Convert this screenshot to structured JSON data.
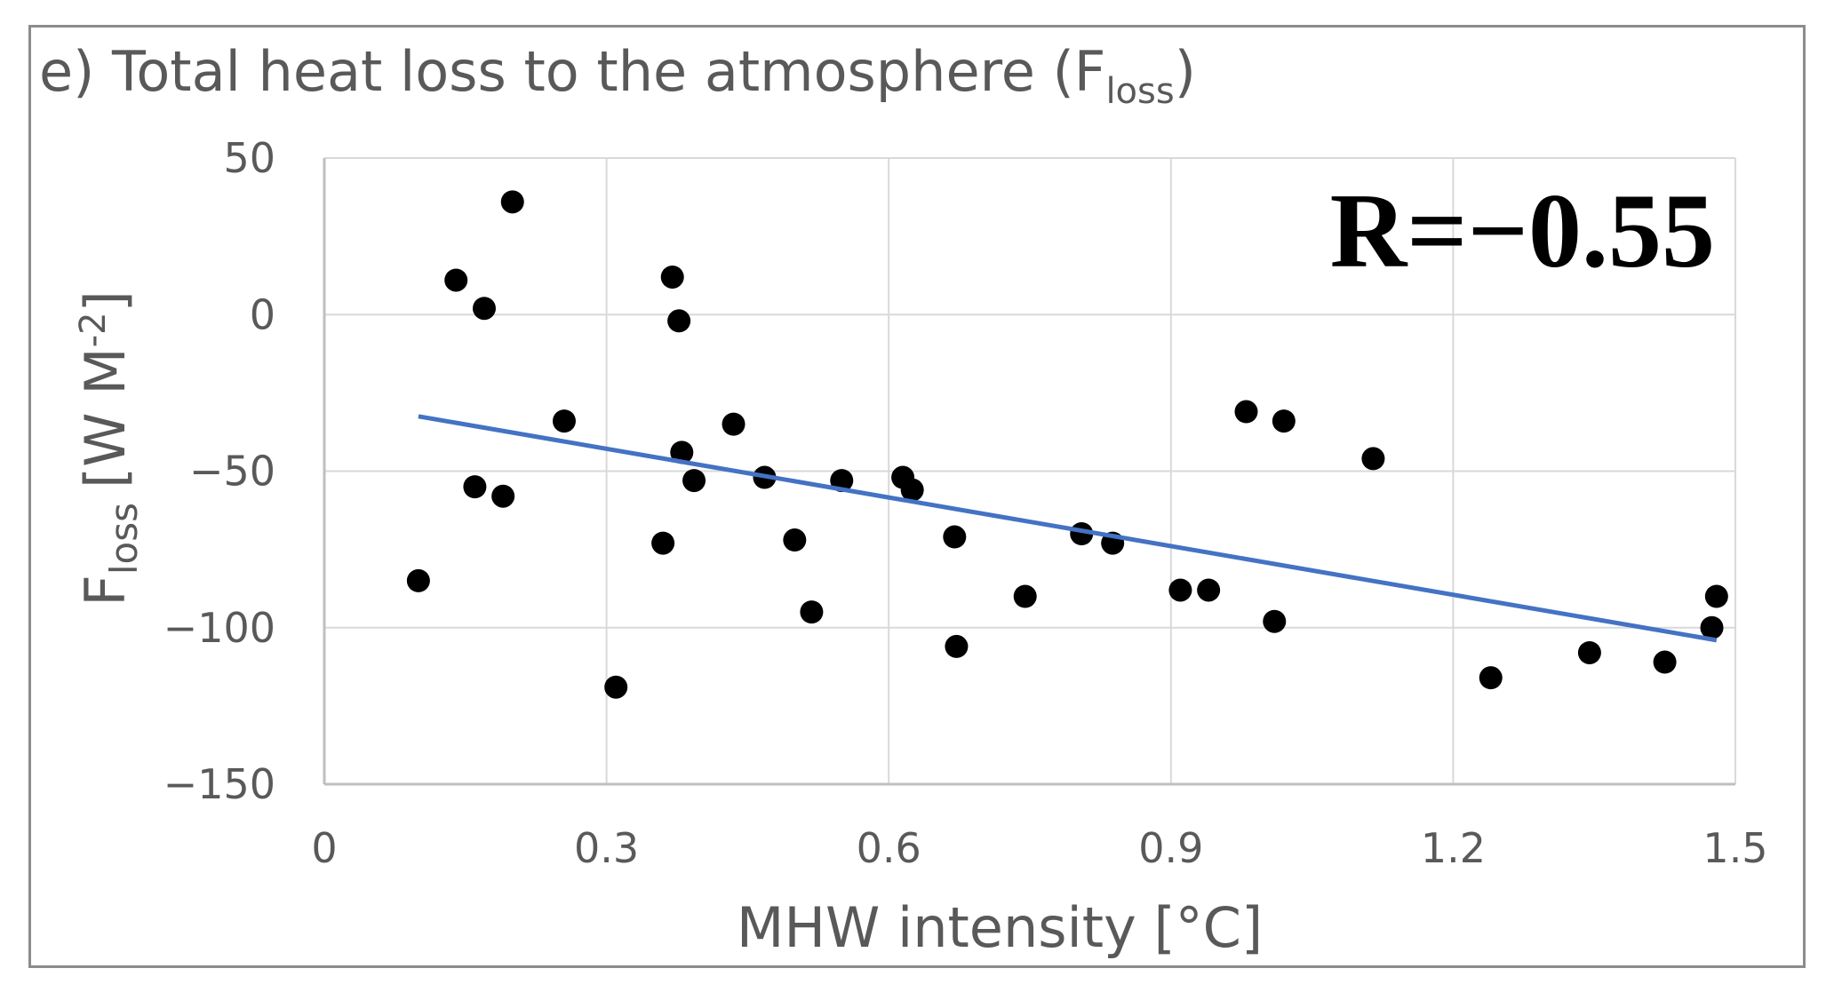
{
  "chart_data": {
    "type": "scatter",
    "title_prefix": "e) Total heat loss to the atmosphere (F",
    "title_sub": "loss",
    "title_suffix": ")",
    "xlabel": "MHW intensity [°C]",
    "ylabel_main": "F",
    "ylabel_sub": "loss",
    "ylabel_unit": "[W M",
    "ylabel_sup": "-2",
    "ylabel_close": "]",
    "xlim": [
      0,
      1.5
    ],
    "ylim": [
      -150,
      50
    ],
    "x_ticks": [
      0,
      0.3,
      0.6,
      0.9,
      1.2,
      1.5
    ],
    "x_tick_labels": [
      "0",
      "0.3",
      "0.6",
      "0.9",
      "1.2",
      "1.5"
    ],
    "y_ticks": [
      50,
      0,
      -50,
      -100,
      -150
    ],
    "y_tick_labels": [
      "50",
      "0",
      "−50",
      "−100",
      "−150"
    ],
    "grid": true,
    "annotation": "R=−0.55",
    "annotation_position": "top-right",
    "colors": {
      "point": "#000000",
      "trend": "#4472c4",
      "grid": "#d9d9d9",
      "axis": "#bfbfbf",
      "text": "#595959"
    },
    "trendline": {
      "x": [
        0.1,
        1.48
      ],
      "y": [
        -32.5,
        -104
      ]
    },
    "points": [
      {
        "x": 0.1,
        "y": -85
      },
      {
        "x": 0.14,
        "y": 11
      },
      {
        "x": 0.16,
        "y": -55
      },
      {
        "x": 0.17,
        "y": 2
      },
      {
        "x": 0.19,
        "y": -58
      },
      {
        "x": 0.2,
        "y": 36
      },
      {
        "x": 0.255,
        "y": -34
      },
      {
        "x": 0.31,
        "y": -119
      },
      {
        "x": 0.36,
        "y": -73
      },
      {
        "x": 0.37,
        "y": 12
      },
      {
        "x": 0.377,
        "y": -2
      },
      {
        "x": 0.38,
        "y": -44
      },
      {
        "x": 0.393,
        "y": -53
      },
      {
        "x": 0.435,
        "y": -35
      },
      {
        "x": 0.468,
        "y": -52
      },
      {
        "x": 0.5,
        "y": -72
      },
      {
        "x": 0.518,
        "y": -95
      },
      {
        "x": 0.55,
        "y": -53
      },
      {
        "x": 0.615,
        "y": -52
      },
      {
        "x": 0.625,
        "y": -56
      },
      {
        "x": 0.67,
        "y": -71
      },
      {
        "x": 0.672,
        "y": -106
      },
      {
        "x": 0.745,
        "y": -90
      },
      {
        "x": 0.805,
        "y": -70
      },
      {
        "x": 0.838,
        "y": -73
      },
      {
        "x": 0.91,
        "y": -88
      },
      {
        "x": 0.94,
        "y": -88
      },
      {
        "x": 0.98,
        "y": -31
      },
      {
        "x": 1.01,
        "y": -98
      },
      {
        "x": 1.02,
        "y": -34
      },
      {
        "x": 1.115,
        "y": -46
      },
      {
        "x": 1.24,
        "y": -116
      },
      {
        "x": 1.345,
        "y": -108
      },
      {
        "x": 1.425,
        "y": -111
      },
      {
        "x": 1.475,
        "y": -100
      },
      {
        "x": 1.48,
        "y": -90
      }
    ]
  }
}
